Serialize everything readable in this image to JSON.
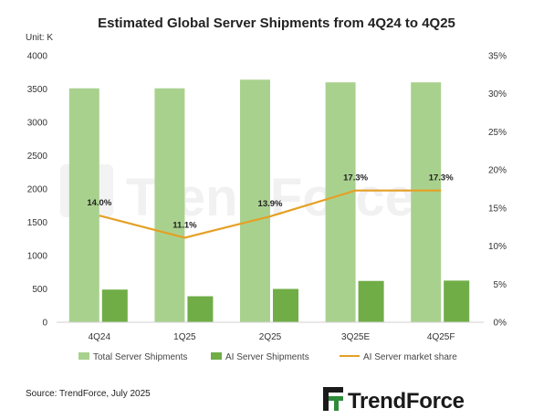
{
  "chart_data": {
    "type": "bar",
    "title": "Estimated Global Server Shipments from 4Q24 to 4Q25",
    "unit_label": "Unit: K",
    "categories": [
      "4Q24",
      "1Q25",
      "2Q25",
      "3Q25E",
      "4Q25F"
    ],
    "ylim": [
      0,
      4000
    ],
    "yticks": [
      "0",
      "500",
      "1000",
      "1500",
      "2000",
      "2500",
      "3000",
      "3500",
      "4000"
    ],
    "y2lim": [
      0,
      35
    ],
    "y2ticks": [
      "0%",
      "5%",
      "10%",
      "15%",
      "20%",
      "25%",
      "30%",
      "35%"
    ],
    "series": [
      {
        "name": "Total Server Shipments",
        "type": "bar",
        "color": "#a9d18e",
        "values": [
          3510,
          3510,
          3640,
          3600,
          3600
        ]
      },
      {
        "name": "AI Server Shipments",
        "type": "bar",
        "color": "#70ad47",
        "values": [
          490,
          390,
          500,
          620,
          625
        ]
      },
      {
        "name": "AI Server market share",
        "type": "line",
        "axis": "secondary",
        "color": "#e5a024",
        "values": [
          14.0,
          11.1,
          13.9,
          17.3,
          17.3
        ],
        "labels": [
          "14.0%",
          "11.1%",
          "13.9%",
          "17.3%",
          "17.3%"
        ]
      }
    ],
    "grid": false,
    "legend_position": "bottom"
  },
  "source": "Source: TrendForce, July 2025",
  "brand": {
    "name": "TrendForce",
    "watermark": "TrendForce",
    "logo_color": "#2e8b3a"
  }
}
